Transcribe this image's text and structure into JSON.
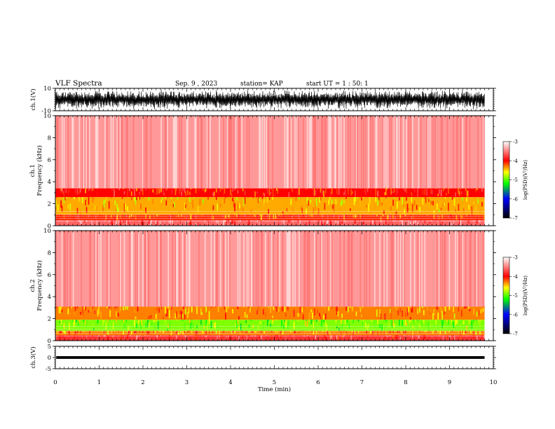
{
  "header": {
    "title": "VLF Spectra",
    "date": "Sep. 9 , 2023",
    "station": "station= KAP",
    "start": "start  UT =   1 : 50: 1"
  },
  "chart_data": [
    {
      "type": "line",
      "panel": "ch1-waveform",
      "ylabel": "ch.1(V)",
      "ylim": [
        -10,
        10
      ],
      "yticks": [
        "10",
        "-10"
      ],
      "xlim": [
        0,
        10
      ],
      "x_data_extent": [
        0,
        9.8
      ],
      "amplitude_range": [
        -9,
        9
      ]
    },
    {
      "type": "heatmap",
      "panel": "ch1-spectrogram",
      "ylabel": "Frequency (kHz)",
      "channel_label": "ch.1",
      "ylim": [
        0,
        10
      ],
      "yticks": [
        "0",
        "2",
        "4",
        "6",
        "8",
        "10"
      ],
      "xlim": [
        0,
        10
      ],
      "x_data_extent": [
        0,
        9.8
      ],
      "bands_kHz": [
        {
          "from": 0,
          "to": 0.5,
          "level": -3.6
        },
        {
          "from": 0.5,
          "to": 1.0,
          "level": -4.1
        },
        {
          "from": 1.0,
          "to": 2.6,
          "level": -4.4
        },
        {
          "from": 2.6,
          "to": 3.4,
          "level": -4.0
        },
        {
          "from": 3.4,
          "to": 10,
          "level": -3.4
        }
      ],
      "colorbar": {
        "label": "log(PSD)(V²/Hz)",
        "range": [
          -7,
          -3
        ],
        "ticks": [
          "-3",
          "-4",
          "-5",
          "-6",
          "-7"
        ]
      }
    },
    {
      "type": "heatmap",
      "panel": "ch2-spectrogram",
      "ylabel": "Frequency (kHz)",
      "channel_label": "ch.2",
      "ylim": [
        0,
        10
      ],
      "yticks": [
        "0",
        "2",
        "4",
        "6",
        "8",
        "10"
      ],
      "xlim": [
        0,
        10
      ],
      "x_data_extent": [
        0,
        9.8
      ],
      "bands_kHz": [
        {
          "from": 0,
          "to": 0.5,
          "level": -3.8
        },
        {
          "from": 0.5,
          "to": 0.9,
          "level": -4.3
        },
        {
          "from": 0.9,
          "to": 1.9,
          "level": -4.9
        },
        {
          "from": 1.9,
          "to": 3.1,
          "level": -4.3
        },
        {
          "from": 3.1,
          "to": 10,
          "level": -3.4
        }
      ],
      "colorbar": {
        "label": "log(PSD)(V²/Hz)",
        "range": [
          -7,
          -3
        ],
        "ticks": [
          "-3",
          "-4",
          "-5",
          "-6",
          "-7"
        ]
      }
    },
    {
      "type": "line",
      "panel": "ch3-waveform",
      "ylabel": "ch.3(V)",
      "ylim": [
        -5,
        5
      ],
      "yticks": [
        "5",
        "0",
        "-5"
      ],
      "xlim": [
        0,
        10
      ],
      "x_data_extent": [
        0,
        9.8
      ],
      "amplitude_range": [
        -0.6,
        0.6
      ],
      "xlabel": "Time (min)",
      "xticks": [
        "0",
        "1",
        "2",
        "3",
        "4",
        "5",
        "6",
        "7",
        "8",
        "9",
        "10"
      ]
    }
  ]
}
